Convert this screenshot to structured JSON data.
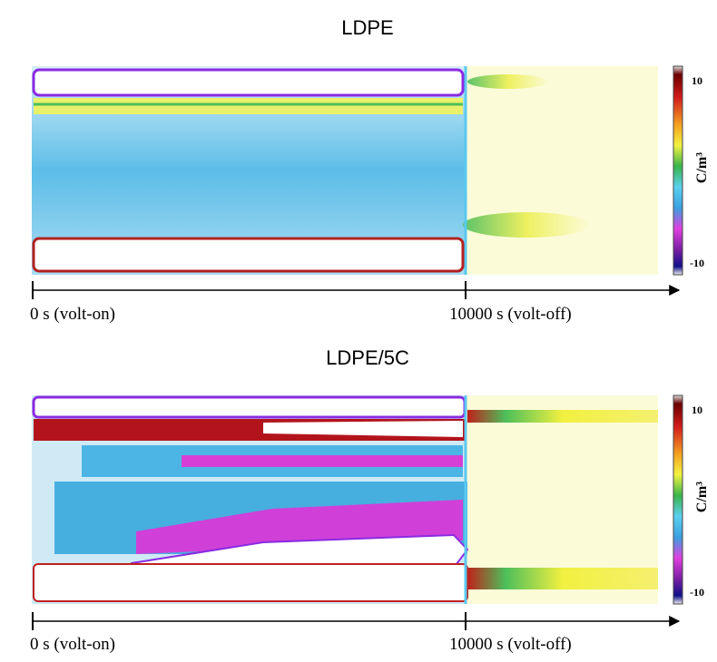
{
  "panels": [
    {
      "title": "LDPE",
      "colorbar": {
        "max": 10,
        "min": -10,
        "unit": "C/m³"
      },
      "time_start": "0 s (volt-on)",
      "time_end": "10000 s (volt-off)"
    },
    {
      "title": "LDPE/5C",
      "colorbar": {
        "max": 10,
        "min": -10,
        "unit": "C/m³"
      },
      "time_start": "0 s (volt-on)",
      "time_end": "10000 s (volt-off)"
    }
  ]
}
